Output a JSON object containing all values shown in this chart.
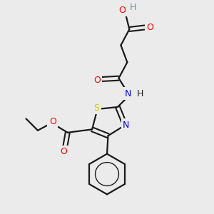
{
  "background_color": "#ebebeb",
  "bond_color": "#1a1a1a",
  "atom_colors": {
    "O": "#ff0000",
    "N": "#0000ff",
    "S": "#cccc00",
    "H_teal": "#5a9ea0",
    "C": "#1a1a1a"
  },
  "figsize": [
    3.0,
    3.0
  ],
  "dpi": 100
}
